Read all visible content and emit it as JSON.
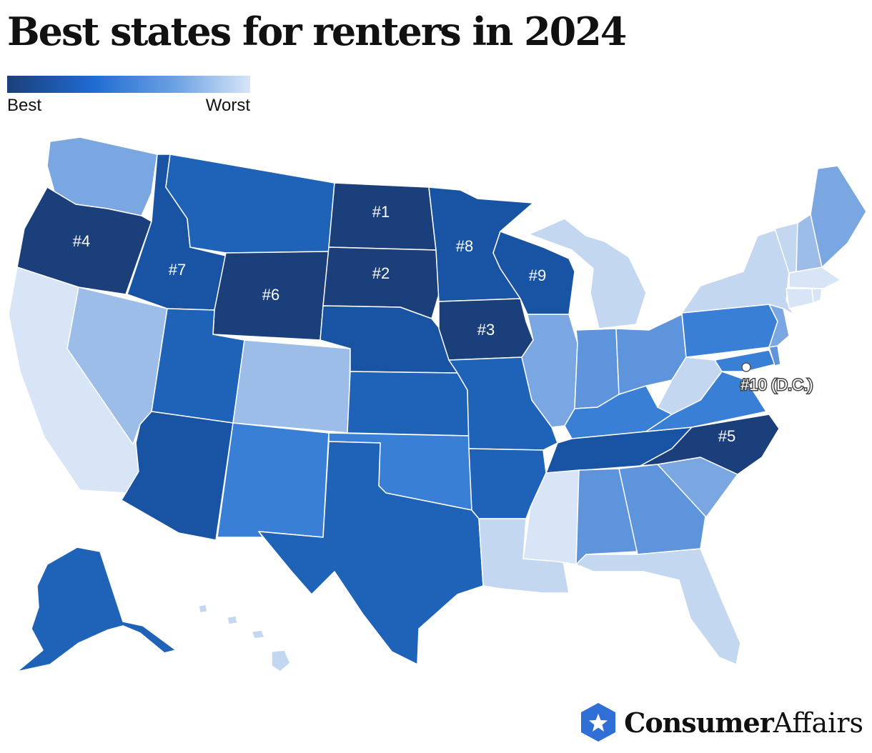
{
  "title": "Best states for renters in 2024",
  "legend": {
    "best_label": "Best",
    "worst_label": "Worst"
  },
  "colors": {
    "tier1": "#1b3f7a",
    "tier2": "#1953a3",
    "tier3": "#1f63b8",
    "tier4": "#3a7fd6",
    "tier5": "#5d94dc",
    "tier6": "#7aa7e2",
    "tier7": "#9bbde8",
    "tier8": "#c3d7f1",
    "tier9": "#d7e5f7"
  },
  "ranks": [
    {
      "state": "North Dakota",
      "label": "#1"
    },
    {
      "state": "South Dakota",
      "label": "#2"
    },
    {
      "state": "Iowa",
      "label": "#3"
    },
    {
      "state": "Oregon",
      "label": "#4"
    },
    {
      "state": "North Carolina",
      "label": "#5"
    },
    {
      "state": "Wyoming",
      "label": "#6"
    },
    {
      "state": "Idaho",
      "label": "#7"
    },
    {
      "state": "Minnesota",
      "label": "#8"
    },
    {
      "state": "Wisconsin",
      "label": "#9"
    },
    {
      "state": "D.C.",
      "label": "#10 (D.C.)"
    }
  ],
  "brand": {
    "strong": "Consumer",
    "light": "Affairs"
  }
}
